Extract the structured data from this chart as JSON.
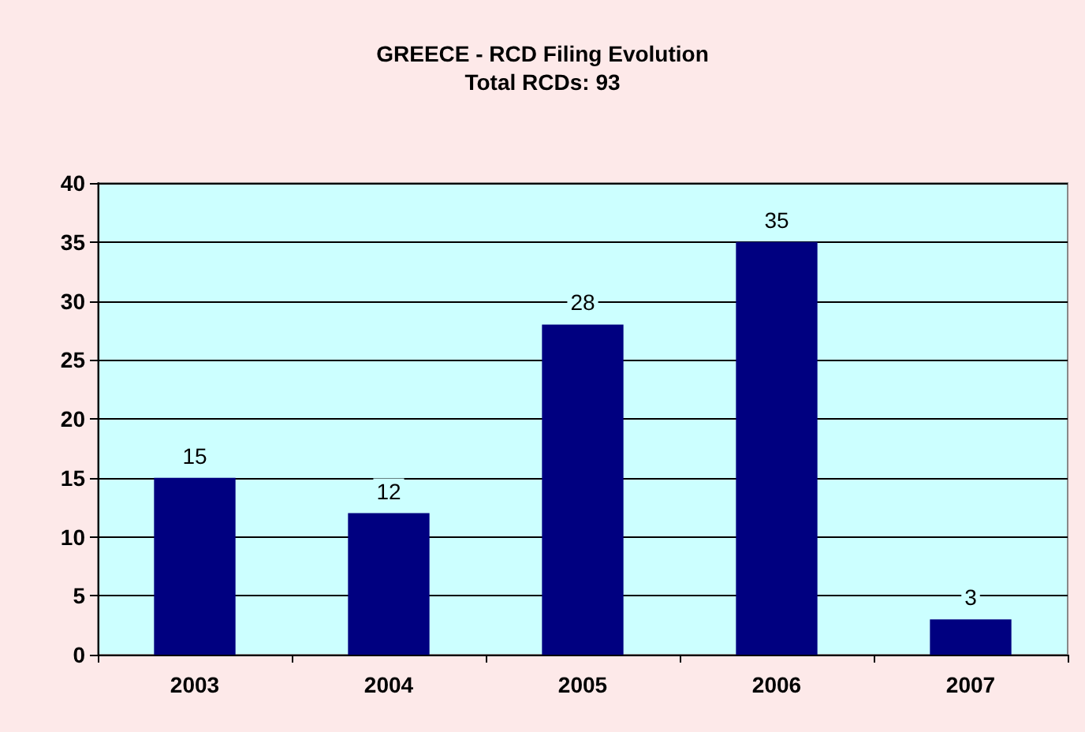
{
  "chart_data": {
    "type": "bar",
    "title": "GREECE - RCD Filing Evolution",
    "subtitle": "Total RCDs: 93",
    "categories": [
      "2003",
      "2004",
      "2005",
      "2006",
      "2007"
    ],
    "values": [
      15,
      12,
      28,
      35,
      3
    ],
    "color": "#000080",
    "ylim": [
      0,
      40
    ],
    "yticks": [
      0,
      5,
      10,
      15,
      20,
      25,
      30,
      35,
      40
    ],
    "grid": "y",
    "data_labels": true
  }
}
